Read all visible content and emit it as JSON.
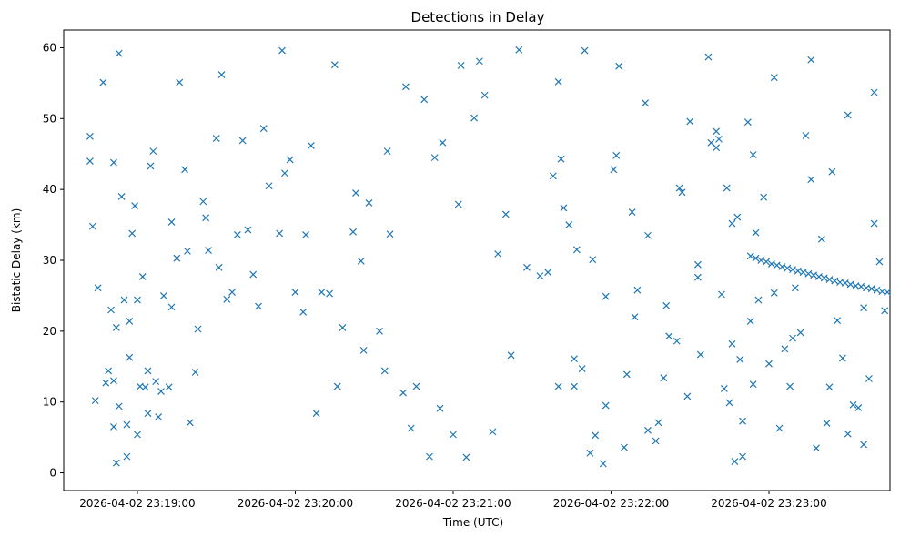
{
  "chart_data": {
    "type": "scatter",
    "title": "Detections in Delay",
    "xlabel": "Time (UTC)",
    "ylabel": "Bistatic Delay (km)",
    "marker": "x",
    "color": "#1f77b4",
    "grid": false,
    "xlim": [
      "2026-04-02 23:18:32",
      "2026-04-02 23:23:46"
    ],
    "ylim": [
      -2.5,
      62.5
    ],
    "x_ticks": [
      "2026-04-02 23:19:00",
      "2026-04-02 23:20:00",
      "2026-04-02 23:21:00",
      "2026-04-02 23:22:00",
      "2026-04-02 23:23:00"
    ],
    "y_ticks": [
      0,
      10,
      20,
      30,
      40,
      50,
      60
    ],
    "series": [
      {
        "x": [
          "2026-04-02 23:18:42",
          "2026-04-02 23:18:42",
          "2026-04-02 23:18:43",
          "2026-04-02 23:18:45",
          "2026-04-02 23:18:47",
          "2026-04-02 23:18:50",
          "2026-04-02 23:18:51",
          "2026-04-02 23:18:51",
          "2026-04-02 23:18:52",
          "2026-04-02 23:18:53",
          "2026-04-02 23:18:56",
          "2026-04-02 23:18:57",
          "2026-04-02 23:18:59",
          "2026-04-02 23:19:00",
          "2026-04-02 23:19:03",
          "2026-04-02 23:19:06",
          "2026-04-02 23:18:44",
          "2026-04-02 23:18:49",
          "2026-04-02 23:18:52",
          "2026-04-02 23:18:55",
          "2026-04-02 23:18:58",
          "2026-04-02 23:19:01",
          "2026-04-02 23:19:04",
          "2026-04-02 23:19:07",
          "2026-04-02 23:19:10",
          "2026-04-02 23:19:13",
          "2026-04-02 23:19:16",
          "2026-04-02 23:19:20",
          "2026-04-02 23:19:23",
          "2026-04-02 23:19:27",
          "2026-04-02 23:19:31",
          "2026-04-02 23:18:48",
          "2026-04-02 23:18:51",
          "2026-04-02 23:18:54",
          "2026-04-02 23:18:57",
          "2026-04-02 23:19:02",
          "2026-04-02 23:19:05",
          "2026-04-02 23:19:08",
          "2026-04-02 23:19:12",
          "2026-04-02 23:19:15",
          "2026-04-02 23:19:18",
          "2026-04-02 23:19:22",
          "2026-04-02 23:19:26",
          "2026-04-02 23:19:30",
          "2026-04-02 23:19:34",
          "2026-04-02 23:19:38",
          "2026-04-02 23:18:53",
          "2026-04-02 23:18:56",
          "2026-04-02 23:19:00",
          "2026-04-02 23:19:04",
          "2026-04-02 23:19:09",
          "2026-04-02 23:19:13",
          "2026-04-02 23:19:19",
          "2026-04-02 23:19:25",
          "2026-04-02 23:19:32",
          "2026-04-02 23:19:40",
          "2026-04-02 23:19:48",
          "2026-04-02 23:19:55",
          "2026-04-02 23:19:58",
          "2026-04-02 23:20:04",
          "2026-04-02 23:20:10",
          "2026-04-02 23:20:16",
          "2026-04-02 23:20:22",
          "2026-04-02 23:20:28",
          "2026-04-02 23:20:35",
          "2026-04-02 23:20:42",
          "2026-04-02 23:20:49",
          "2026-04-02 23:20:56",
          "2026-04-02 23:21:03",
          "2026-04-02 23:21:10",
          "2026-04-02 23:19:42",
          "2026-04-02 23:19:50",
          "2026-04-02 23:20:00",
          "2026-04-02 23:20:08",
          "2026-04-02 23:20:18",
          "2026-04-02 23:20:26",
          "2026-04-02 23:20:36",
          "2026-04-02 23:20:46",
          "2026-04-02 23:20:55",
          "2026-04-02 23:21:05",
          "2026-04-02 23:21:15",
          "2026-04-02 23:21:22",
          "2026-04-02 23:19:36",
          "2026-04-02 23:19:46",
          "2026-04-02 23:19:56",
          "2026-04-02 23:20:06",
          "2026-04-02 23:20:15",
          "2026-04-02 23:20:25",
          "2026-04-02 23:20:34",
          "2026-04-02 23:20:44",
          "2026-04-02 23:20:53",
          "2026-04-02 23:21:02",
          "2026-04-02 23:21:12",
          "2026-04-02 23:21:20",
          "2026-04-02 23:21:28",
          "2026-04-02 23:19:44",
          "2026-04-02 23:19:54",
          "2026-04-02 23:20:03",
          "2026-04-02 23:20:13",
          "2026-04-02 23:20:23",
          "2026-04-02 23:20:32",
          "2026-04-02 23:20:41",
          "2026-04-02 23:20:51",
          "2026-04-02 23:21:00",
          "2026-04-02 23:21:08",
          "2026-04-02 23:21:17",
          "2026-04-02 23:21:25",
          "2026-04-02 23:21:33",
          "2026-04-02 23:21:40",
          "2026-04-02 23:21:46",
          "2026-04-02 23:21:38",
          "2026-04-02 23:21:42",
          "2026-04-02 23:21:46",
          "2026-04-02 23:21:50",
          "2026-04-02 23:21:54",
          "2026-04-02 23:21:58",
          "2026-04-02 23:22:02",
          "2026-04-02 23:22:06",
          "2026-04-02 23:22:10",
          "2026-04-02 23:22:14",
          "2026-04-02 23:22:18",
          "2026-04-02 23:22:22",
          "2026-04-02 23:22:26",
          "2026-04-02 23:22:30",
          "2026-04-02 23:22:34",
          "2026-04-02 23:22:38",
          "2026-04-02 23:22:42",
          "2026-04-02 23:22:46",
          "2026-04-02 23:22:50",
          "2026-04-02 23:22:54",
          "2026-04-02 23:21:36",
          "2026-04-02 23:21:40",
          "2026-04-02 23:21:44",
          "2026-04-02 23:21:49",
          "2026-04-02 23:21:53",
          "2026-04-02 23:21:57",
          "2026-04-02 23:22:01",
          "2026-04-02 23:22:05",
          "2026-04-02 23:22:09",
          "2026-04-02 23:22:13",
          "2026-04-02 23:22:17",
          "2026-04-02 23:22:21",
          "2026-04-02 23:22:25",
          "2026-04-02 23:22:29",
          "2026-04-02 23:22:33",
          "2026-04-02 23:22:37",
          "2026-04-02 23:22:41",
          "2026-04-02 23:22:45",
          "2026-04-02 23:22:49",
          "2026-04-02 23:22:53",
          "2026-04-02 23:21:41",
          "2026-04-02 23:21:47",
          "2026-04-02 23:21:52",
          "2026-04-02 23:21:58",
          "2026-04-02 23:22:03",
          "2026-04-02 23:22:08",
          "2026-04-02 23:22:14",
          "2026-04-02 23:22:20",
          "2026-04-02 23:22:27",
          "2026-04-02 23:22:33",
          "2026-04-02 23:22:40",
          "2026-04-02 23:22:47",
          "2026-04-02 23:22:55",
          "2026-04-02 23:23:02",
          "2026-04-02 23:23:09",
          "2026-04-02 23:23:16",
          "2026-04-02 23:23:23",
          "2026-04-02 23:23:30",
          "2026-04-02 23:23:36",
          "2026-04-02 23:23:40",
          "2026-04-02 23:22:53",
          "2026-04-02 23:22:55",
          "2026-04-02 23:22:57",
          "2026-04-02 23:22:59",
          "2026-04-02 23:23:01",
          "2026-04-02 23:23:03",
          "2026-04-02 23:23:05",
          "2026-04-02 23:23:07",
          "2026-04-02 23:23:09",
          "2026-04-02 23:23:11",
          "2026-04-02 23:23:13",
          "2026-04-02 23:23:15",
          "2026-04-02 23:23:17",
          "2026-04-02 23:23:19",
          "2026-04-02 23:23:21",
          "2026-04-02 23:23:23",
          "2026-04-02 23:23:25",
          "2026-04-02 23:23:27",
          "2026-04-02 23:23:29",
          "2026-04-02 23:23:31",
          "2026-04-02 23:23:33",
          "2026-04-02 23:23:35",
          "2026-04-02 23:23:37",
          "2026-04-02 23:23:39",
          "2026-04-02 23:23:41",
          "2026-04-02 23:23:43",
          "2026-04-02 23:23:45",
          "2026-04-02 23:22:40",
          "2026-04-02 23:22:44",
          "2026-04-02 23:22:48",
          "2026-04-02 23:22:52",
          "2026-04-02 23:22:56",
          "2026-04-02 23:23:00",
          "2026-04-02 23:23:04",
          "2026-04-02 23:23:08",
          "2026-04-02 23:23:12",
          "2026-04-02 23:23:16",
          "2026-04-02 23:23:20",
          "2026-04-02 23:23:24",
          "2026-04-02 23:23:28",
          "2026-04-02 23:23:32",
          "2026-04-02 23:23:36",
          "2026-04-02 23:23:40",
          "2026-04-02 23:23:44",
          "2026-04-02 23:22:43",
          "2026-04-02 23:22:50",
          "2026-04-02 23:22:58",
          "2026-04-02 23:23:06",
          "2026-04-02 23:23:14",
          "2026-04-02 23:23:22",
          "2026-04-02 23:23:30",
          "2026-04-02 23:23:38",
          "2026-04-02 23:22:46",
          "2026-04-02 23:22:54",
          "2026-04-02 23:23:02",
          "2026-04-02 23:23:10",
          "2026-04-02 23:23:18",
          "2026-04-02 23:23:26",
          "2026-04-02 23:23:34",
          "2026-04-02 23:23:42"
        ],
        "y": [
          47.5,
          44.0,
          34.8,
          26.1,
          55.1,
          23.0,
          43.8,
          13.0,
          1.4,
          59.2,
          6.8,
          21.4,
          37.7,
          24.4,
          12.1,
          45.4,
          10.2,
          14.4,
          20.5,
          24.4,
          33.8,
          12.2,
          8.4,
          12.9,
          25.0,
          35.4,
          55.1,
          7.1,
          20.3,
          31.4,
          29.0,
          12.7,
          6.5,
          39.0,
          16.3,
          27.7,
          43.3,
          7.9,
          12.1,
          30.3,
          42.8,
          14.2,
          36.0,
          47.2,
          24.5,
          33.6,
          9.4,
          2.3,
          5.4,
          14.4,
          11.5,
          23.4,
          31.3,
          38.3,
          56.2,
          46.9,
          48.6,
          59.6,
          44.2,
          33.6,
          25.5,
          12.2,
          34.0,
          38.1,
          45.4,
          54.5,
          52.7,
          46.6,
          57.5,
          58.1,
          34.3,
          40.5,
          25.5,
          8.4,
          20.5,
          17.3,
          33.7,
          12.2,
          9.1,
          2.2,
          5.8,
          16.6,
          25.5,
          23.5,
          42.3,
          46.2,
          57.6,
          29.9,
          14.4,
          6.3,
          44.5,
          37.9,
          53.3,
          36.5,
          29.0,
          28.0,
          33.8,
          22.7,
          25.3,
          39.5,
          20.0,
          11.3,
          2.3,
          5.4,
          50.1,
          30.9,
          59.7,
          27.8,
          12.2,
          16.1,
          41.9,
          37.4,
          12.2,
          59.6,
          5.3,
          9.5,
          44.8,
          13.9,
          25.8,
          33.5,
          7.1,
          19.3,
          40.2,
          49.6,
          16.7,
          46.6,
          25.2,
          18.2,
          7.3,
          12.5,
          28.3,
          55.2,
          35.0,
          14.7,
          30.1,
          1.3,
          42.8,
          3.6,
          22.0,
          52.2,
          4.5,
          23.6,
          18.6,
          10.8,
          27.6,
          58.7,
          47.1,
          9.9,
          16.0,
          21.4,
          44.3,
          31.5,
          2.8,
          24.9,
          57.4,
          36.8,
          6.0,
          13.4,
          39.6,
          29.4,
          48.2,
          1.6,
          33.9,
          25.4,
          19.0,
          41.4,
          12.1,
          5.5,
          23.3,
          35.2,
          30.6,
          30.3,
          30.0,
          29.8,
          29.5,
          29.3,
          29.1,
          28.9,
          28.7,
          28.5,
          28.3,
          28.1,
          27.9,
          27.7,
          27.5,
          27.3,
          27.1,
          26.9,
          26.8,
          26.6,
          26.4,
          26.3,
          26.1,
          26.0,
          25.8,
          25.6,
          25.5,
          45.9,
          40.2,
          36.1,
          49.5,
          24.4,
          15.4,
          6.3,
          12.2,
          19.8,
          58.3,
          33.0,
          42.5,
          16.2,
          9.6,
          4.0,
          53.7,
          22.9,
          11.9,
          2.3,
          38.9,
          17.5,
          47.6,
          7.0,
          50.5,
          13.3,
          35.2,
          44.9,
          55.8,
          26.1,
          3.5,
          21.5,
          9.2,
          29.8
        ]
      }
    ]
  }
}
